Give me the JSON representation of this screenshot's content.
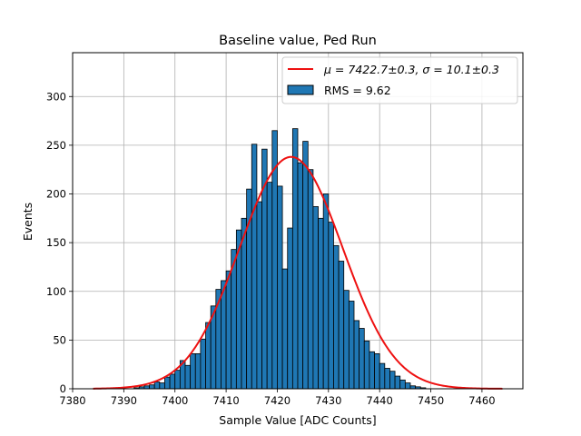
{
  "chart_data": {
    "type": "bar",
    "title": "Baseline value, Ped Run",
    "xlabel": "Sample Value [ADC Counts]",
    "ylabel": "Events",
    "xlim": [
      7380,
      7468
    ],
    "ylim": [
      0,
      345
    ],
    "xticks": [
      7380,
      7390,
      7400,
      7410,
      7420,
      7430,
      7440,
      7450,
      7460
    ],
    "yticks": [
      0,
      50,
      100,
      150,
      200,
      250,
      300
    ],
    "grid": true,
    "legend_position": "top-right",
    "histogram": {
      "name": "RMS = 9.62",
      "bin_width": 1,
      "bin_start": 7389,
      "counts": [
        1,
        0,
        0,
        1,
        2,
        3,
        4,
        7,
        6,
        12,
        15,
        19,
        29,
        24,
        36,
        36,
        51,
        68,
        85,
        102,
        111,
        121,
        143,
        163,
        175,
        205,
        251,
        192,
        246,
        212,
        265,
        208,
        123,
        165,
        267,
        232,
        254,
        225,
        187,
        175,
        200,
        171,
        147,
        131,
        101,
        90,
        70,
        62,
        49,
        38,
        36,
        26,
        21,
        18,
        13,
        9,
        6,
        3,
        2,
        1
      ]
    },
    "fit": {
      "name_prefix": "μ = 7422.7±0.3, σ = 10.1±0.3",
      "mu": 7422.7,
      "sigma": 10.1,
      "amplitude": 238,
      "x_range": [
        7384,
        7464
      ]
    },
    "colors": {
      "bar_fill": "#1f77b4",
      "bar_edge": "#000000",
      "fit_line": "#ee1111",
      "grid": "#b0b0b0"
    }
  }
}
